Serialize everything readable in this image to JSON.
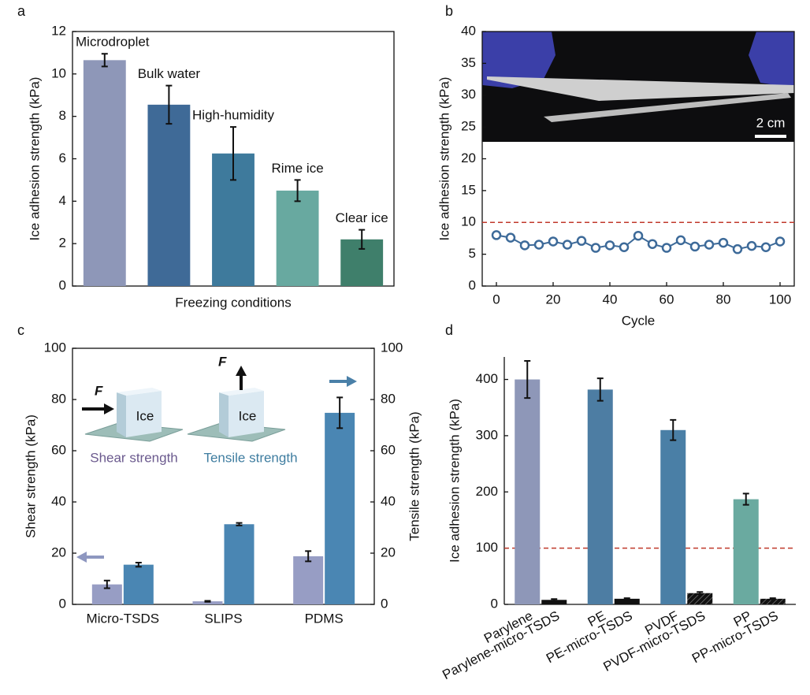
{
  "chart_data": [
    {
      "panel": "a",
      "type": "bar",
      "categories": [
        "Microdroplet",
        "Bulk water",
        "High-humidity",
        "Rime ice",
        "Clear ice"
      ],
      "values": [
        10.65,
        8.55,
        6.25,
        4.5,
        2.2
      ],
      "errors": [
        0.3,
        0.9,
        1.25,
        0.5,
        0.45
      ],
      "colors": [
        "#8e97b8",
        "#3f6a97",
        "#3e7a9c",
        "#68a9a0",
        "#3f7f6b"
      ],
      "xlabel": "Freezing conditions",
      "ylabel": "Ice adhesion strength (kPa)",
      "ylim": [
        0,
        12
      ],
      "yticks": [
        0,
        2,
        4,
        6,
        8,
        10,
        12
      ]
    },
    {
      "panel": "b",
      "type": "line",
      "x": [
        0,
        5,
        10,
        15,
        20,
        25,
        30,
        35,
        40,
        45,
        50,
        55,
        60,
        65,
        70,
        75,
        80,
        85,
        90,
        95,
        100
      ],
      "values": [
        8.0,
        7.6,
        6.4,
        6.5,
        7.0,
        6.5,
        7.1,
        6.0,
        6.4,
        6.1,
        7.9,
        6.6,
        6.0,
        7.2,
        6.2,
        6.5,
        6.8,
        5.8,
        6.3,
        6.1,
        7.0
      ],
      "color": "#3d6a99",
      "reference_line": {
        "value": 10,
        "color": "#c0392b"
      },
      "image_annotation": "2 cm",
      "xlabel": "Cycle",
      "ylabel": "Ice adhesion strength (kPa)",
      "xlim": [
        -5,
        105
      ],
      "xticks": [
        0,
        20,
        40,
        60,
        80,
        100
      ],
      "ylim": [
        0,
        40
      ],
      "yticks": [
        0,
        5,
        10,
        15,
        20,
        25,
        30,
        35,
        40
      ]
    },
    {
      "panel": "c",
      "type": "grouped_bar",
      "categories": [
        "Micro-TSDS",
        "SLIPS",
        "PDMS"
      ],
      "series": [
        {
          "name": "Shear strength",
          "color": "#979dc4",
          "values": [
            7.8,
            1.2,
            18.8
          ],
          "errors": [
            1.5,
            0.2,
            2.0
          ]
        },
        {
          "name": "Tensile strength",
          "color": "#4a86b3",
          "axis": "y2",
          "values": [
            15.5,
            31.3,
            74.8
          ],
          "errors": [
            0.8,
            0.5,
            6.0
          ]
        }
      ],
      "insets": [
        {
          "force": "F",
          "block": "Ice"
        },
        {
          "force": "F",
          "block": "Ice"
        }
      ],
      "ylabel": "Shear strength (kPa)",
      "y2label": "Tensile strength (kPa)",
      "ylim": [
        0,
        100
      ],
      "yticks": [
        0,
        20,
        40,
        60,
        80,
        100
      ],
      "y2lim": [
        0,
        100
      ],
      "y2ticks": [
        0,
        20,
        40,
        60,
        80,
        100
      ]
    },
    {
      "panel": "d",
      "type": "bar",
      "categories": [
        "Parylene",
        "Parylene-micro-TSDS",
        "PE",
        "PE-micro-TSDS",
        "PVDF",
        "PVDF-micro-TSDS",
        "PP",
        "PP-micro-TSDS"
      ],
      "values": [
        400,
        8,
        382,
        10,
        310,
        20,
        187,
        10
      ],
      "errors": [
        33,
        1.5,
        20,
        1,
        18,
        2,
        10,
        1
      ],
      "colors": [
        "#8e97b8",
        "#111111",
        "#4d7da3",
        "#111111",
        "#4a7fa6",
        "#111111",
        "#6aaaa0",
        "#111111"
      ],
      "hatch": [
        false,
        false,
        false,
        false,
        false,
        true,
        false,
        true
      ],
      "reference_line": {
        "value": 100,
        "color": "#c0392b"
      },
      "ylabel": "Ice adhesion strength (kPa)",
      "ylim": [
        0,
        440
      ],
      "yticks": [
        0,
        100,
        200,
        300,
        400
      ]
    }
  ]
}
